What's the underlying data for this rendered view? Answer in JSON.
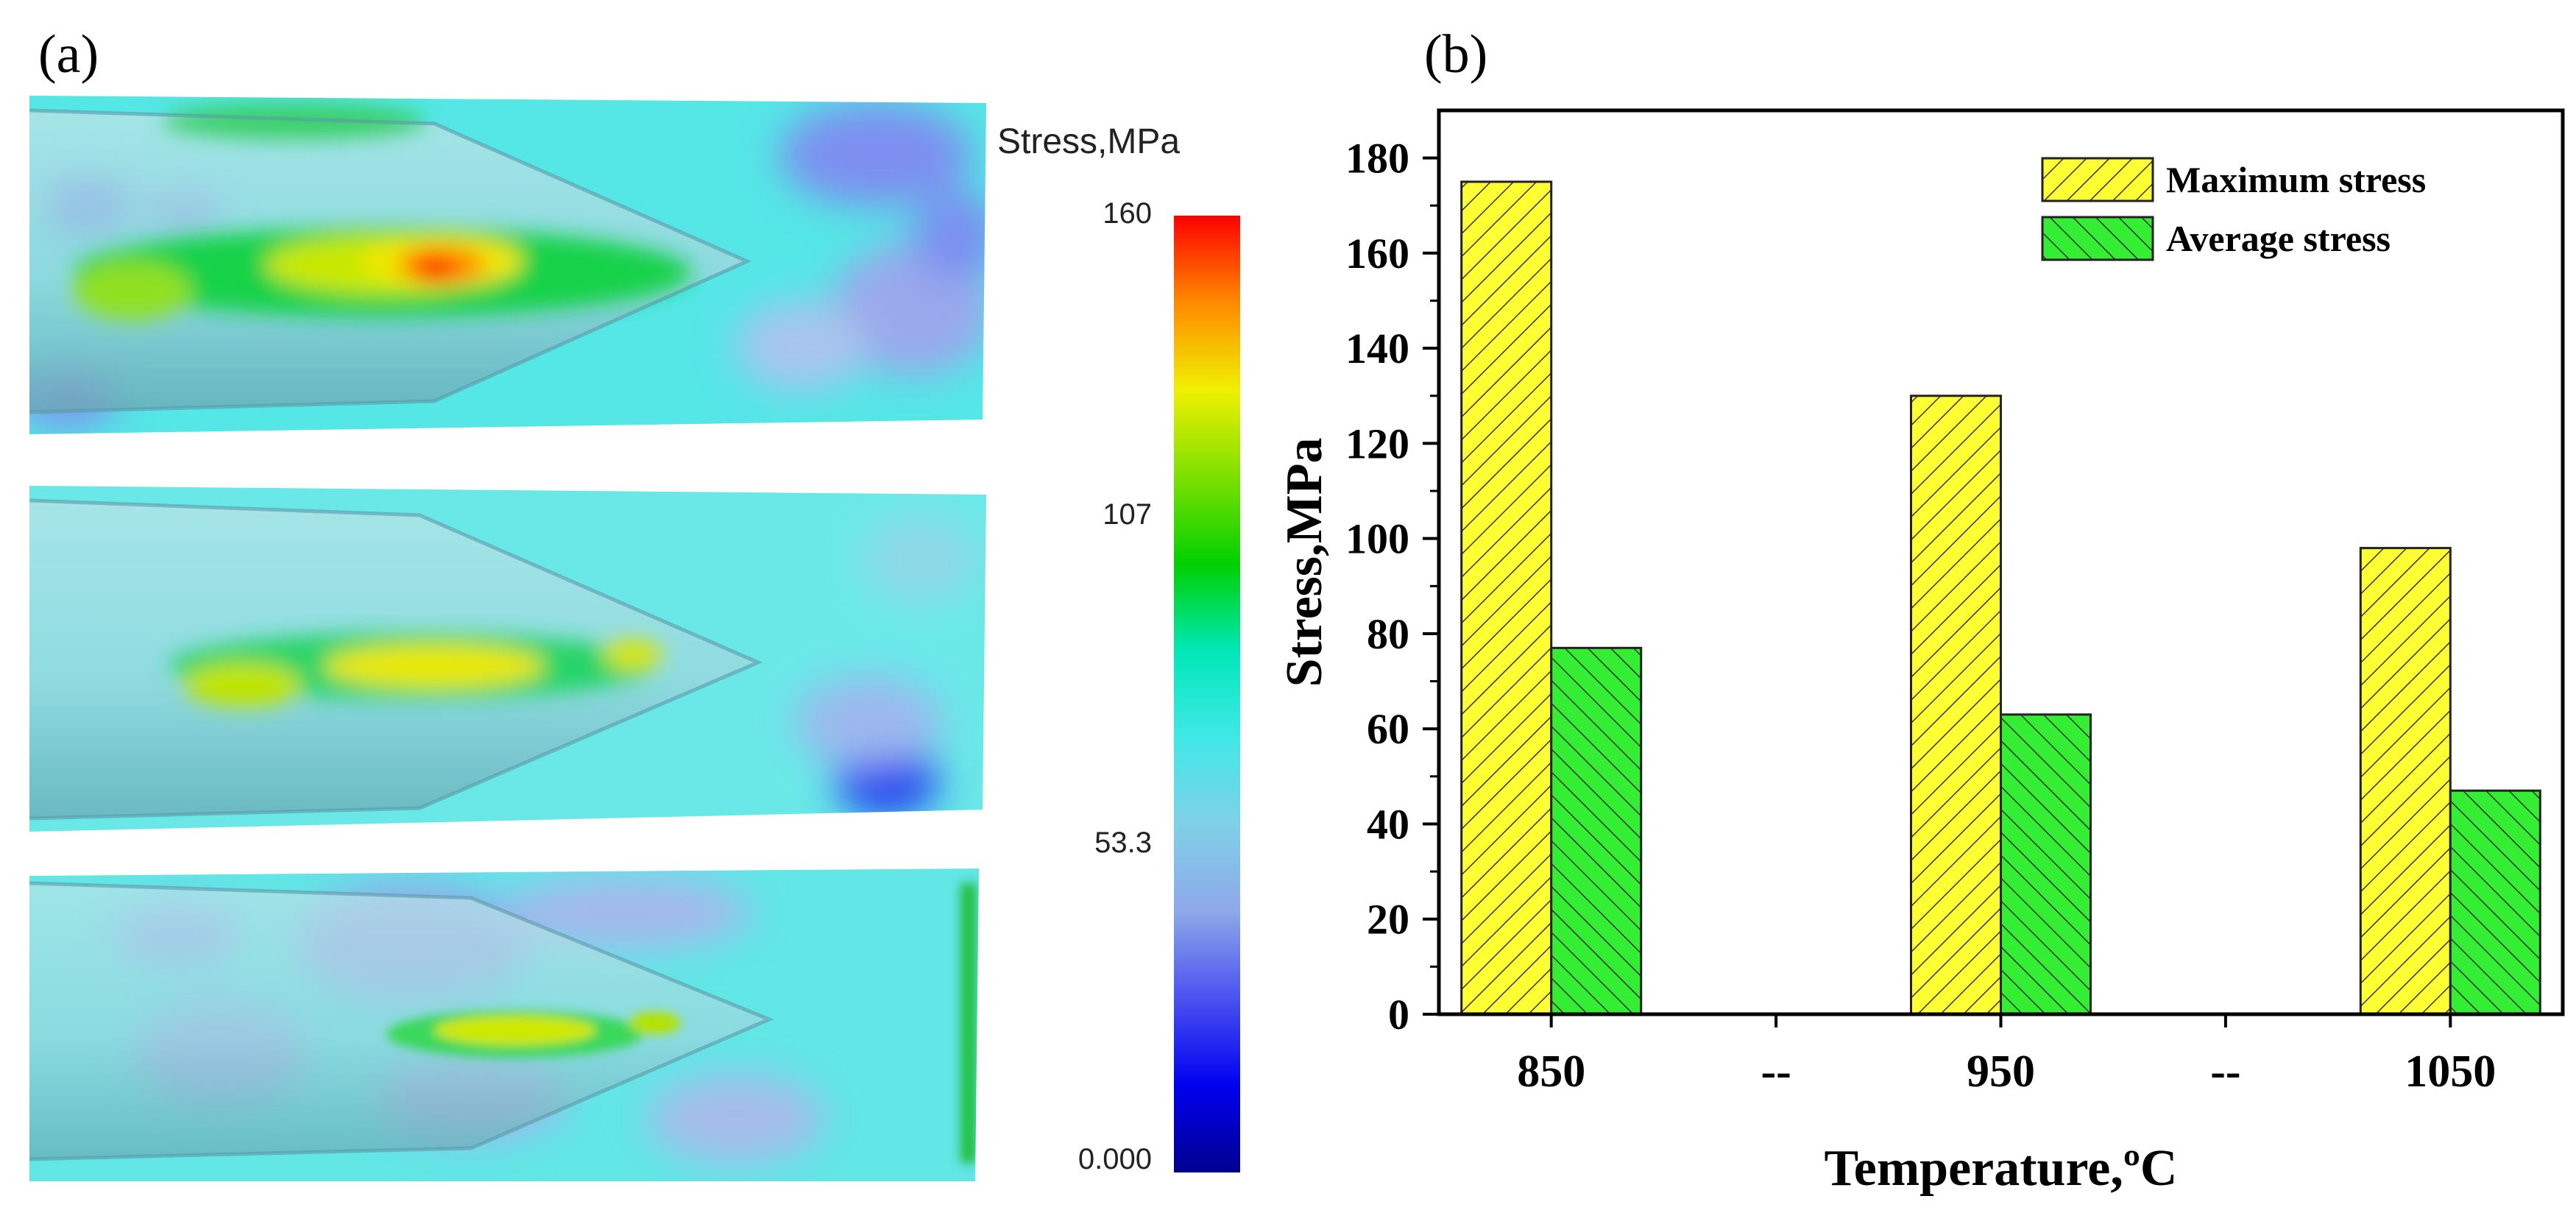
{
  "panel_a": {
    "label": "(a)",
    "colorbar": {
      "title": "Stress,MPa",
      "tick_labels": [
        "160",
        "107",
        "53.3",
        "0.000"
      ],
      "colors": [
        "#ff0000",
        "#ff8a00",
        "#f0f000",
        "#7de000",
        "#00d000",
        "#00e8b8",
        "#40e8e8",
        "#7fd0e8",
        "#8ea8ea",
        "#4a52f0",
        "#0000f0",
        "#000090"
      ]
    },
    "maps": [
      {
        "name": "stress-map-850",
        "hot_spot_level": "high"
      },
      {
        "name": "stress-map-950",
        "hot_spot_level": "medium"
      },
      {
        "name": "stress-map-1050",
        "hot_spot_level": "low"
      }
    ]
  },
  "panel_b": {
    "label": "(b)"
  },
  "chart_data": {
    "type": "bar",
    "title": "",
    "xlabel": "Temperature,ºC",
    "ylabel": "Stress,MPa",
    "ylim": [
      0,
      190
    ],
    "yticks": [
      0,
      20,
      40,
      60,
      80,
      100,
      120,
      140,
      160,
      180
    ],
    "categories": [
      "850",
      "--",
      "950",
      "--",
      "1050"
    ],
    "series": [
      {
        "name": "Maximum stress",
        "values": [
          175,
          null,
          130,
          null,
          98
        ],
        "color": "#ffff33",
        "hatch": "backslash"
      },
      {
        "name": "Average stress",
        "values": [
          77,
          null,
          63,
          null,
          47
        ],
        "color": "#33ee33",
        "hatch": "slash"
      }
    ],
    "legend_position": "top-right",
    "grid": false
  }
}
